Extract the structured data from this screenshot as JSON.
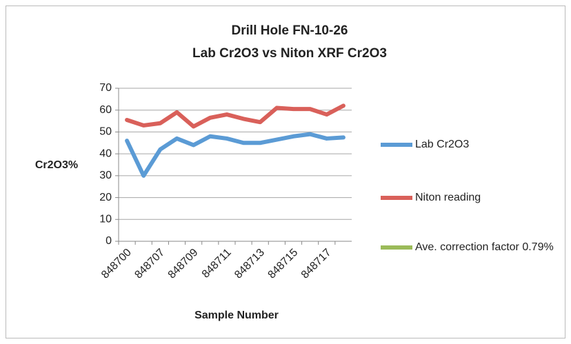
{
  "chart_data": {
    "type": "line",
    "title": [
      "Drill Hole FN-10-26",
      "Lab Cr2O3 vs Niton XRF Cr2O3"
    ],
    "x_label": "Sample Number",
    "y_label": "Cr2O3%",
    "categories": [
      "848700",
      null,
      "848707",
      null,
      "848709",
      null,
      "848711",
      null,
      "848713",
      null,
      "848715",
      null,
      "848717",
      null
    ],
    "series": [
      {
        "name": "Lab Cr2O3",
        "color": "#5b9bd5",
        "values": [
          46,
          30,
          42,
          47,
          44,
          48,
          47,
          45,
          45,
          46.5,
          48,
          49,
          47,
          47.5
        ]
      },
      {
        "name": "Niton reading",
        "color": "#d9605a",
        "values": [
          55.5,
          53,
          54,
          59,
          52.5,
          56.5,
          58,
          56,
          54.5,
          61,
          60.5,
          60.5,
          58,
          62
        ]
      },
      {
        "name": "Ave. correction factor 0.79%",
        "color": "#9bbb59",
        "values": [
          null,
          null,
          null,
          null,
          null,
          null,
          null,
          null,
          null,
          null,
          null,
          null,
          null,
          null
        ]
      }
    ],
    "ylim": [
      0,
      70
    ],
    "yticks": [
      0,
      10,
      20,
      30,
      40,
      50,
      60,
      70
    ],
    "grid": true,
    "legend": "right"
  }
}
